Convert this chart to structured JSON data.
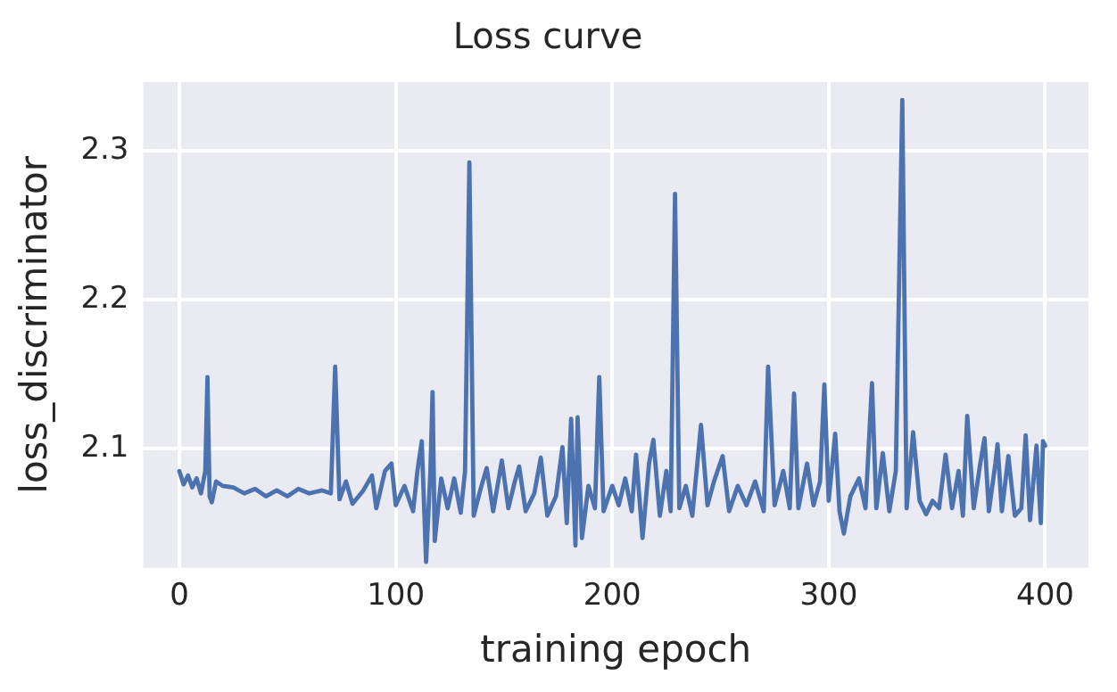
{
  "chart_data": {
    "type": "line",
    "title": "Loss curve",
    "xlabel": "training epoch",
    "ylabel": "loss_discriminator",
    "xlim": [
      -16.7,
      420
    ],
    "ylim": [
      2.02,
      2.346
    ],
    "xticks": [
      0,
      100,
      200,
      300,
      400
    ],
    "yticks": [
      2.1,
      2.2,
      2.3
    ],
    "grid": true,
    "legend": false,
    "marker": "none",
    "line_style": "solid",
    "x": [
      0,
      2,
      4,
      6,
      8,
      10,
      12,
      13,
      14,
      15,
      17,
      20,
      25,
      30,
      35,
      40,
      45,
      50,
      55,
      60,
      66,
      70,
      72,
      74,
      77,
      80,
      85,
      89,
      91,
      95,
      98,
      100,
      104,
      108,
      110,
      112,
      114,
      116,
      117,
      118,
      121,
      124,
      127,
      130,
      132,
      134,
      136,
      139,
      142,
      145,
      149,
      152,
      155,
      157,
      160,
      164,
      167,
      170,
      174,
      177,
      179,
      181,
      183,
      184,
      186,
      189,
      192,
      194,
      196,
      200,
      203,
      206,
      209,
      211,
      214,
      217,
      219,
      222,
      225,
      227,
      229,
      231,
      234,
      237,
      241,
      244,
      247,
      251,
      254,
      258,
      262,
      266,
      270,
      272,
      275,
      279,
      282,
      284,
      286,
      290,
      293,
      296,
      298,
      300,
      303,
      305,
      307,
      310,
      314,
      317,
      320,
      322,
      325,
      328,
      331,
      334,
      336,
      339,
      342,
      345,
      348,
      351,
      354,
      357,
      360,
      362,
      364,
      367,
      370,
      372,
      374,
      377,
      378,
      380,
      383,
      386,
      389,
      391,
      393,
      396,
      398,
      399,
      400
    ],
    "series": [
      {
        "color": "#4c72b0",
        "values": [
          2.085,
          2.076,
          2.082,
          2.074,
          2.08,
          2.07,
          2.085,
          2.148,
          2.068,
          2.064,
          2.078,
          2.075,
          2.074,
          2.07,
          2.073,
          2.068,
          2.072,
          2.068,
          2.073,
          2.07,
          2.072,
          2.07,
          2.155,
          2.066,
          2.078,
          2.063,
          2.072,
          2.082,
          2.06,
          2.085,
          2.09,
          2.062,
          2.075,
          2.058,
          2.085,
          2.105,
          2.024,
          2.085,
          2.138,
          2.038,
          2.08,
          2.06,
          2.08,
          2.057,
          2.085,
          2.292,
          2.055,
          2.072,
          2.087,
          2.058,
          2.092,
          2.06,
          2.078,
          2.088,
          2.058,
          2.07,
          2.094,
          2.055,
          2.068,
          2.101,
          2.05,
          2.12,
          2.035,
          2.121,
          2.04,
          2.075,
          2.06,
          2.148,
          2.058,
          2.075,
          2.062,
          2.08,
          2.058,
          2.096,
          2.04,
          2.09,
          2.106,
          2.055,
          2.085,
          2.058,
          2.271,
          2.06,
          2.075,
          2.055,
          2.116,
          2.062,
          2.078,
          2.095,
          2.058,
          2.075,
          2.062,
          2.078,
          2.058,
          2.155,
          2.062,
          2.085,
          2.06,
          2.137,
          2.06,
          2.09,
          2.062,
          2.078,
          2.143,
          2.065,
          2.11,
          2.058,
          2.043,
          2.068,
          2.08,
          2.06,
          2.144,
          2.06,
          2.097,
          2.058,
          2.085,
          2.334,
          2.06,
          2.111,
          2.065,
          2.056,
          2.065,
          2.06,
          2.096,
          2.06,
          2.085,
          2.055,
          2.122,
          2.06,
          2.09,
          2.107,
          2.058,
          2.09,
          2.103,
          2.058,
          2.095,
          2.055,
          2.06,
          2.109,
          2.052,
          2.102,
          2.05,
          2.105,
          2.102
        ]
      }
    ]
  }
}
